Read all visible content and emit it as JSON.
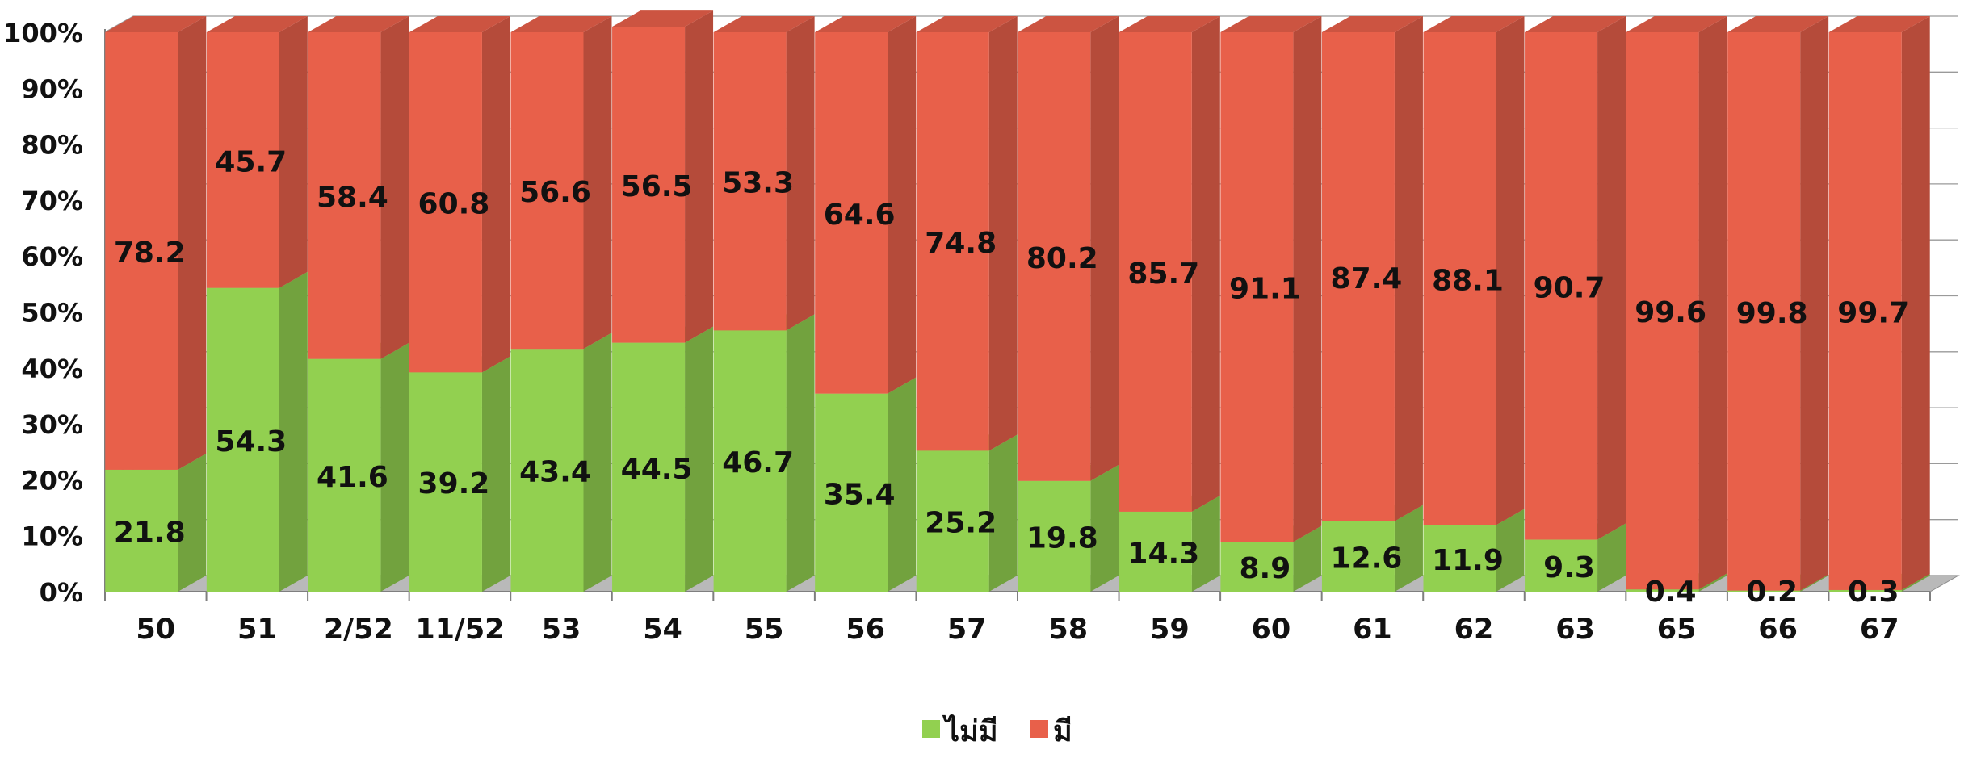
{
  "chart_data": {
    "type": "bar",
    "stacked": "percent",
    "three_d": true,
    "categories": [
      "50",
      "51",
      "2/52",
      "11/52",
      "53",
      "54",
      "55",
      "56",
      "57",
      "58",
      "59",
      "60",
      "61",
      "62",
      "63",
      "65",
      "66",
      "67"
    ],
    "series": [
      {
        "name": "ไม่มี",
        "color": "#92D050",
        "values": [
          21.8,
          54.3,
          41.6,
          39.2,
          43.4,
          44.5,
          46.7,
          35.4,
          25.2,
          19.8,
          14.3,
          8.9,
          12.6,
          11.9,
          9.3,
          0.4,
          0.2,
          0.3
        ]
      },
      {
        "name": "มี",
        "color": "#E8604A",
        "values": [
          78.2,
          45.7,
          58.4,
          60.8,
          56.6,
          56.5,
          53.3,
          64.6,
          74.8,
          80.2,
          85.7,
          91.1,
          87.4,
          88.1,
          90.7,
          99.6,
          99.8,
          99.7
        ]
      }
    ],
    "y_ticks": [
      "0%",
      "10%",
      "20%",
      "30%",
      "40%",
      "50%",
      "60%",
      "70%",
      "80%",
      "90%",
      "100%"
    ],
    "ylim": [
      0,
      100
    ],
    "grid": true,
    "legend_position": "bottom-center",
    "title": "",
    "xlabel": "",
    "ylabel": ""
  }
}
